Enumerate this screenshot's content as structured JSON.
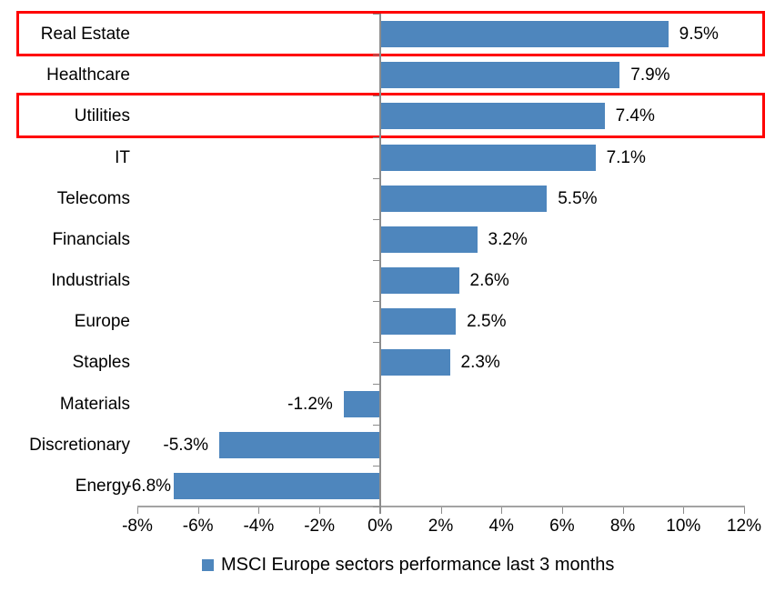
{
  "chart_data": {
    "type": "bar",
    "orientation": "horizontal",
    "title": "",
    "xlabel": "",
    "ylabel": "",
    "categories": [
      "Real Estate",
      "Healthcare",
      "Utilities",
      "IT",
      "Telecoms",
      "Financials",
      "Industrials",
      "Europe",
      "Staples",
      "Materials",
      "Discretionary",
      "Energy"
    ],
    "values": [
      9.5,
      7.9,
      7.4,
      7.1,
      5.5,
      3.2,
      2.6,
      2.5,
      2.3,
      -1.2,
      -5.3,
      -6.8
    ],
    "value_labels": [
      "9.5%",
      "7.9%",
      "7.4%",
      "7.1%",
      "5.5%",
      "3.2%",
      "2.6%",
      "2.5%",
      "2.3%",
      "-1.2%",
      "-5.3%",
      "-6.8%"
    ],
    "xlim": [
      -8,
      12
    ],
    "x_tick_values": [
      -8,
      -6,
      -4,
      -2,
      0,
      2,
      4,
      6,
      8,
      10,
      12
    ],
    "x_tick_labels": [
      "-8%",
      "-6%",
      "-4%",
      "-2%",
      "0%",
      "2%",
      "4%",
      "6%",
      "8%",
      "10%",
      "12%"
    ],
    "bar_color": "#4e86bd",
    "grid": false,
    "legend": "MSCI Europe sectors performance last 3 months",
    "legend_position": "bottom",
    "legend_marker_color": "#4e86bd",
    "highlighted_categories": [
      "Real Estate",
      "Utilities"
    ],
    "highlight_color": "#ff0000"
  }
}
